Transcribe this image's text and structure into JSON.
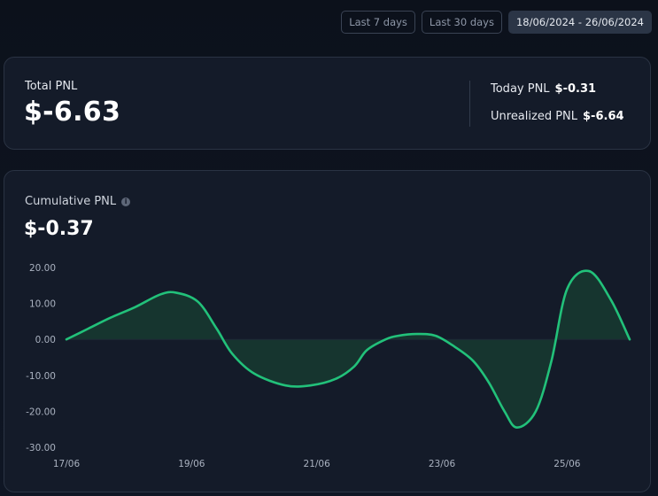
{
  "date_range": {
    "options": [
      "Last 7 days",
      "Last 30 days",
      "18/06/2024 - 26/06/2024"
    ],
    "selected_index": 2
  },
  "summary": {
    "total_label": "Total PNL",
    "total_value": "$-6.63",
    "today_label": "Today PNL",
    "today_value": "$-0.31",
    "unrealized_label": "Unrealized PNL",
    "unrealized_value": "$-6.64"
  },
  "cumulative": {
    "label": "Cumulative PNL",
    "info_icon": "info-icon",
    "value": "$-0.37"
  },
  "colors": {
    "line": "#22c17a",
    "fill": "#163a30",
    "active_button": "#2b3546"
  },
  "chart_data": {
    "type": "area",
    "title": "",
    "xlabel": "",
    "ylabel": "",
    "ylim": [
      -30,
      20
    ],
    "yticks": [
      "20.00",
      "10.00",
      "0.00",
      "-10.00",
      "-20.00",
      "-30.00"
    ],
    "ytick_values": [
      20,
      10,
      0,
      -10,
      -20,
      -30
    ],
    "xlim": [
      0,
      9
    ],
    "xticks": [
      "17/06",
      "19/06",
      "21/06",
      "23/06",
      "25/06"
    ],
    "xtick_positions": [
      0,
      2,
      4,
      6,
      8
    ],
    "grid": false,
    "series": [
      {
        "x": [
          0,
          0.35,
          0.7,
          1.1,
          1.5,
          1.75,
          2.1,
          2.4,
          2.65,
          3.0,
          3.5,
          3.9,
          4.3,
          4.6,
          4.8,
          5.1,
          5.3,
          5.6,
          5.9,
          6.2,
          6.5,
          6.75,
          7.0,
          7.2,
          7.5,
          7.75,
          8.0,
          8.35,
          8.7,
          9.0
        ],
        "values": [
          0,
          3,
          6,
          9,
          12.5,
          13,
          10.5,
          3,
          -4,
          -9.5,
          -12.8,
          -12.8,
          -11,
          -7.5,
          -3,
          0,
          1,
          1.5,
          1,
          -2,
          -6,
          -12,
          -20,
          -24.5,
          -20,
          -6,
          14,
          19,
          11,
          0
        ]
      }
    ]
  }
}
